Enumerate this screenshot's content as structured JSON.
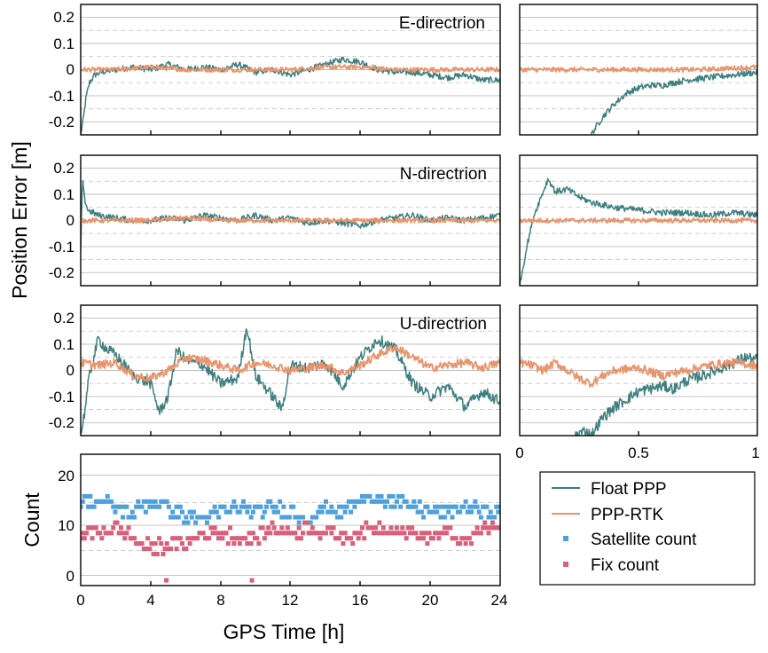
{
  "chart_data": [
    {
      "type": "line",
      "panel": "E-direction full day",
      "label": "E-directrion",
      "x_range": [
        0,
        24
      ],
      "ylim": [
        -0.25,
        0.25
      ],
      "yticks": [
        "0.2",
        "0.1",
        "0",
        "-0.1",
        "-0.2"
      ],
      "ytick_values": [
        0.2,
        0.1,
        0,
        -0.1,
        -0.2
      ],
      "series": [
        {
          "name": "Float PPP",
          "color": "#3f7f7f",
          "x": [
            0,
            0.15,
            0.3,
            0.5,
            0.8,
            1.2,
            2,
            3,
            4,
            5,
            6,
            7,
            8,
            9,
            10,
            11,
            12,
            13,
            14,
            15,
            16,
            17,
            18,
            19,
            20,
            21,
            22,
            23,
            24
          ],
          "y": [
            -0.25,
            -0.19,
            -0.11,
            -0.05,
            -0.02,
            -0.01,
            0.0,
            0.01,
            0.0,
            0.02,
            0.0,
            0.01,
            0.0,
            0.02,
            -0.01,
            0.0,
            -0.02,
            0.0,
            0.02,
            0.04,
            0.03,
            0.0,
            -0.01,
            -0.01,
            -0.02,
            -0.03,
            -0.02,
            -0.04,
            -0.04
          ]
        },
        {
          "name": "PPP-RTK",
          "color": "#e8956d",
          "x": [
            0,
            2,
            4,
            6,
            8,
            10,
            12,
            14,
            16,
            18,
            20,
            22,
            24
          ],
          "y": [
            0.0,
            0.0,
            0.01,
            0.0,
            0.0,
            0.0,
            0.0,
            0.01,
            0.01,
            0.0,
            0.0,
            0.0,
            0.0
          ]
        }
      ]
    },
    {
      "type": "line",
      "panel": "E-direction zoom",
      "x_range": [
        0,
        1
      ],
      "ylim": [
        -0.25,
        0.25
      ],
      "series": [
        {
          "name": "Float PPP",
          "color": "#3f7f7f",
          "x": [
            0.3,
            0.35,
            0.4,
            0.45,
            0.5,
            0.55,
            0.6,
            0.7,
            0.8,
            0.9,
            1.0
          ],
          "y": [
            -0.25,
            -0.18,
            -0.13,
            -0.09,
            -0.07,
            -0.06,
            -0.06,
            -0.04,
            -0.03,
            -0.02,
            -0.01
          ]
        },
        {
          "name": "PPP-RTK",
          "color": "#e8956d",
          "x": [
            0,
            0.25,
            0.5,
            0.75,
            1.0
          ],
          "y": [
            0.0,
            0.0,
            0.0,
            0.0,
            0.01
          ]
        }
      ]
    },
    {
      "type": "line",
      "panel": "N-direction full day",
      "label": "N-directrion",
      "x_range": [
        0,
        24
      ],
      "ylim": [
        -0.25,
        0.25
      ],
      "series": [
        {
          "name": "Float PPP",
          "color": "#3f7f7f",
          "x": [
            0,
            0.1,
            0.2,
            0.4,
            0.7,
            1,
            2,
            3,
            4,
            5,
            6,
            7,
            8,
            9,
            10,
            11,
            12,
            13,
            14,
            15,
            16,
            17,
            18,
            19,
            20,
            21,
            22,
            23,
            24
          ],
          "y": [
            -0.12,
            0.16,
            0.09,
            0.04,
            0.03,
            0.02,
            0.01,
            0.0,
            0.0,
            0.01,
            0.0,
            0.02,
            0.01,
            0.0,
            0.02,
            0.0,
            0.01,
            -0.01,
            0.0,
            -0.01,
            -0.02,
            0.0,
            0.01,
            0.02,
            0.0,
            0.01,
            0.0,
            0.01,
            0.02
          ]
        },
        {
          "name": "PPP-RTK",
          "color": "#e8956d",
          "x": [
            0,
            2,
            4,
            6,
            8,
            10,
            12,
            14,
            16,
            18,
            20,
            22,
            24
          ],
          "y": [
            0.0,
            0.0,
            0.0,
            0.01,
            0.0,
            0.0,
            0.0,
            0.0,
            0.0,
            0.0,
            0.0,
            0.0,
            0.0
          ]
        }
      ]
    },
    {
      "type": "line",
      "panel": "N-direction zoom",
      "x_range": [
        0,
        1
      ],
      "ylim": [
        -0.25,
        0.25
      ],
      "series": [
        {
          "name": "Float PPP",
          "color": "#3f7f7f",
          "x": [
            0,
            0.03,
            0.06,
            0.09,
            0.12,
            0.15,
            0.2,
            0.25,
            0.3,
            0.4,
            0.5,
            0.6,
            0.7,
            0.8,
            0.9,
            1.0
          ],
          "y": [
            -0.25,
            -0.1,
            0.02,
            0.09,
            0.16,
            0.11,
            0.12,
            0.09,
            0.07,
            0.05,
            0.04,
            0.03,
            0.03,
            0.02,
            0.03,
            0.02
          ]
        },
        {
          "name": "PPP-RTK",
          "color": "#e8956d",
          "x": [
            0,
            0.25,
            0.5,
            0.75,
            1.0
          ],
          "y": [
            0.0,
            0.0,
            0.0,
            0.0,
            0.0
          ]
        }
      ]
    },
    {
      "type": "line",
      "panel": "U-direction full day",
      "label": "U-directrion",
      "x_range": [
        0,
        24
      ],
      "ylim": [
        -0.25,
        0.25
      ],
      "series": [
        {
          "name": "Float PPP",
          "color": "#3f7f7f",
          "x": [
            0,
            0.2,
            0.5,
            1,
            1.5,
            2,
            3,
            4,
            4.5,
            5,
            5.5,
            6,
            7,
            8,
            9,
            9.5,
            10,
            11,
            11.5,
            12,
            13,
            14,
            15,
            16,
            17,
            18,
            19,
            20,
            21,
            22,
            23,
            24
          ],
          "y": [
            -0.25,
            -0.17,
            -0.02,
            0.12,
            0.08,
            0.06,
            -0.02,
            -0.05,
            -0.16,
            -0.1,
            0.08,
            0.04,
            0.02,
            -0.05,
            -0.03,
            0.17,
            -0.02,
            -0.1,
            -0.15,
            0.02,
            0.01,
            0.03,
            -0.06,
            0.05,
            0.12,
            0.08,
            -0.05,
            -0.1,
            -0.06,
            -0.14,
            -0.08,
            -0.12
          ]
        },
        {
          "name": "PPP-RTK",
          "color": "#e8956d",
          "x": [
            0,
            1,
            2,
            3,
            4,
            5,
            6,
            7,
            8,
            9,
            10,
            11,
            12,
            13,
            14,
            15,
            16,
            17,
            18,
            19,
            20,
            21,
            22,
            23,
            24
          ],
          "y": [
            0.03,
            0.02,
            0.03,
            -0.02,
            -0.03,
            0.0,
            0.05,
            0.04,
            0.02,
            0.0,
            0.03,
            0.02,
            0.0,
            0.01,
            0.02,
            -0.01,
            0.02,
            0.06,
            0.09,
            0.05,
            0.01,
            0.02,
            0.03,
            0.01,
            0.03
          ]
        }
      ]
    },
    {
      "type": "line",
      "panel": "U-direction zoom",
      "x_range": [
        0,
        1
      ],
      "ylim": [
        -0.25,
        0.25
      ],
      "series": [
        {
          "name": "Float PPP",
          "color": "#3f7f7f",
          "x": [
            0.23,
            0.28,
            0.3,
            0.35,
            0.4,
            0.45,
            0.5,
            0.55,
            0.6,
            0.65,
            0.7,
            0.8,
            0.9,
            0.95,
            1.0
          ],
          "y": [
            -0.25,
            -0.23,
            -0.25,
            -0.18,
            -0.14,
            -0.11,
            -0.08,
            -0.07,
            -0.06,
            -0.07,
            -0.04,
            -0.01,
            0.03,
            0.05,
            0.04
          ]
        },
        {
          "name": "PPP-RTK",
          "color": "#e8956d",
          "x": [
            0,
            0.05,
            0.1,
            0.15,
            0.2,
            0.25,
            0.3,
            0.35,
            0.4,
            0.5,
            0.6,
            0.7,
            0.8,
            0.9,
            1.0
          ],
          "y": [
            0.03,
            0.02,
            0.0,
            0.03,
            0.0,
            -0.03,
            -0.05,
            -0.02,
            0.0,
            0.01,
            -0.02,
            0.0,
            0.02,
            0.03,
            0.02
          ]
        }
      ]
    },
    {
      "type": "scatter",
      "panel": "Count",
      "x_range": [
        0,
        24
      ],
      "ylim": [
        -1,
        24
      ],
      "series": [
        {
          "name": "Satellite count",
          "color": "#4ea1da",
          "x": [
            0,
            1,
            2,
            3,
            4,
            5,
            6,
            7,
            8,
            9,
            10,
            11,
            12,
            13,
            14,
            15,
            16,
            17,
            18,
            19,
            20,
            21,
            22,
            23,
            24
          ],
          "y": [
            15,
            15,
            14,
            13,
            15,
            14,
            12,
            12,
            13,
            14,
            13,
            14,
            13,
            12,
            14,
            13,
            15,
            16,
            15,
            14,
            13,
            13,
            14,
            13,
            13
          ]
        },
        {
          "name": "Fix count",
          "color": "#d95f7a",
          "x": [
            0,
            1,
            2,
            3,
            4,
            5,
            6,
            7,
            8,
            9,
            10,
            11,
            12,
            13,
            14,
            15,
            16,
            17,
            18,
            19,
            20,
            21,
            22,
            23,
            24
          ],
          "y": [
            9,
            9,
            10,
            8,
            6,
            7,
            7,
            9,
            9,
            8,
            8,
            10,
            9,
            10,
            9,
            8,
            9,
            10,
            10,
            9,
            8,
            9,
            7,
            10,
            10
          ]
        },
        {
          "name": "Fix count",
          "color": "#d95f7a",
          "x": [
            4.9,
            9.8
          ],
          "y": [
            0,
            0
          ]
        }
      ]
    }
  ],
  "labels": {
    "e_panel": "E-directrion",
    "n_panel": "N-directrion",
    "u_panel": "U-directrion",
    "y_axis_title": "Position Error [m]",
    "count_axis_title": "Count",
    "x_axis_title": "GPS Time [h]"
  },
  "ticks": {
    "error_y": [
      "0.2",
      "0.1",
      "0",
      "-0.1",
      "-0.2"
    ],
    "count_y": [
      "20",
      "10",
      "0"
    ],
    "time_x": [
      "0",
      "4",
      "8",
      "12",
      "16",
      "20",
      "24"
    ],
    "zoom_x": [
      "0",
      "0.5",
      "1"
    ]
  },
  "legend": {
    "items": [
      {
        "label": "Float PPP",
        "kind": "line",
        "color": "#3f7f7f"
      },
      {
        "label": "PPP-RTK",
        "kind": "line",
        "color": "#e8956d"
      },
      {
        "label": "Satellite count",
        "kind": "marker",
        "color": "#4ea1da"
      },
      {
        "label": "Fix count",
        "kind": "marker",
        "color": "#d95f7a"
      }
    ]
  }
}
